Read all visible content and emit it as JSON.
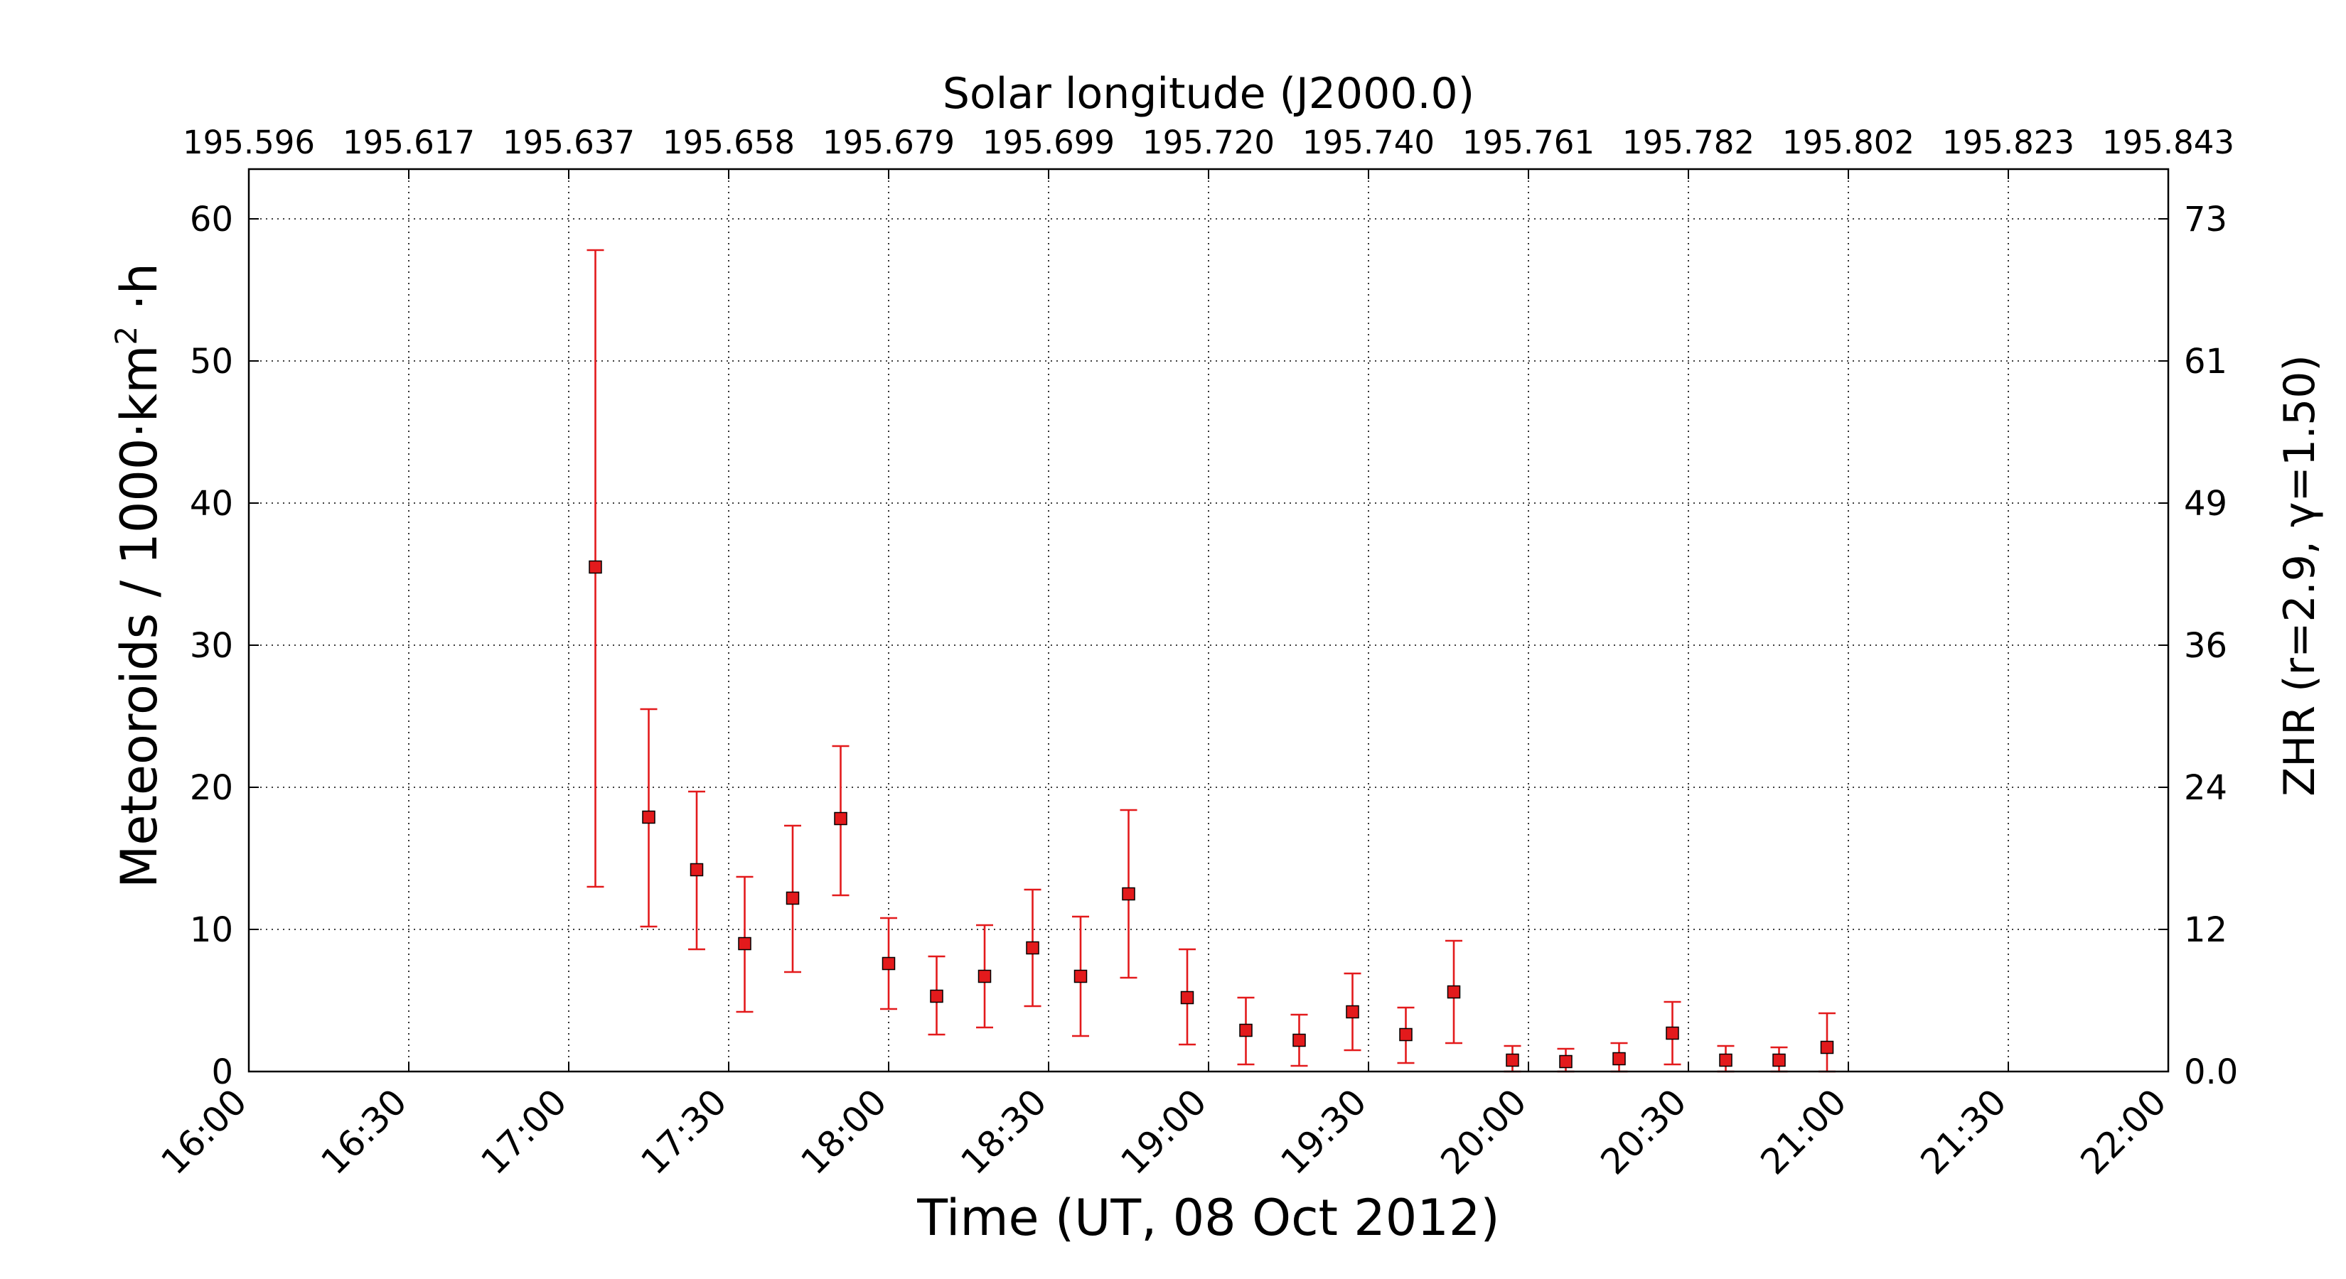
{
  "chart_data": {
    "type": "scatter",
    "title": "Solar longitude (J2000.0)",
    "xlabel": "Time (UT, 08 Oct 2012)",
    "ylabel_left": "Meteoroids / 1000·km",
    "ylabel_left_superscript": "2",
    "ylabel_left_suffix": " ·h",
    "ylabel_right": "ZHR (r=2.9, γ=1.50)",
    "xlim": [
      "16:00",
      "22:00"
    ],
    "ylim": [
      0,
      63.5
    ],
    "grid": true,
    "x_tick_labels": [
      "16:00",
      "16:30",
      "17:00",
      "17:30",
      "18:00",
      "18:30",
      "19:00",
      "19:30",
      "20:00",
      "20:30",
      "21:00",
      "21:30",
      "22:00"
    ],
    "y_tick_values": [
      0,
      10,
      20,
      30,
      40,
      50,
      60
    ],
    "y_right_tick_labels": [
      "0.0",
      "12",
      "24",
      "36",
      "49",
      "61",
      "73"
    ],
    "top_tick_labels": [
      "195.596",
      "195.617",
      "195.637",
      "195.658",
      "195.679",
      "195.699",
      "195.720",
      "195.740",
      "195.761",
      "195.782",
      "195.802",
      "195.823",
      "195.843"
    ],
    "series": [
      {
        "color": "#e31a1c",
        "marker": "square",
        "points": [
          {
            "t": "17:05",
            "y": 35.5,
            "lo": 13.0,
            "hi": 57.8
          },
          {
            "t": "17:15",
            "y": 17.9,
            "lo": 10.2,
            "hi": 25.5
          },
          {
            "t": "17:24",
            "y": 14.2,
            "lo": 8.6,
            "hi": 19.7
          },
          {
            "t": "17:33",
            "y": 9.0,
            "lo": 4.2,
            "hi": 13.7
          },
          {
            "t": "17:42",
            "y": 12.2,
            "lo": 7.0,
            "hi": 17.3
          },
          {
            "t": "17:51",
            "y": 17.8,
            "lo": 12.4,
            "hi": 22.9
          },
          {
            "t": "18:00",
            "y": 7.6,
            "lo": 4.4,
            "hi": 10.8
          },
          {
            "t": "18:09",
            "y": 5.3,
            "lo": 2.6,
            "hi": 8.1
          },
          {
            "t": "18:18",
            "y": 6.7,
            "lo": 3.1,
            "hi": 10.3
          },
          {
            "t": "18:27",
            "y": 8.7,
            "lo": 4.6,
            "hi": 12.8
          },
          {
            "t": "18:36",
            "y": 6.7,
            "lo": 2.5,
            "hi": 10.9
          },
          {
            "t": "18:45",
            "y": 12.5,
            "lo": 6.6,
            "hi": 18.4
          },
          {
            "t": "18:56",
            "y": 5.2,
            "lo": 1.9,
            "hi": 8.6
          },
          {
            "t": "19:07",
            "y": 2.9,
            "lo": 0.5,
            "hi": 5.2
          },
          {
            "t": "19:17",
            "y": 2.2,
            "lo": 0.4,
            "hi": 4.0
          },
          {
            "t": "19:27",
            "y": 4.2,
            "lo": 1.5,
            "hi": 6.9
          },
          {
            "t": "19:37",
            "y": 2.6,
            "lo": 0.6,
            "hi": 4.5
          },
          {
            "t": "19:46",
            "y": 5.6,
            "lo": 2.0,
            "hi": 9.2
          },
          {
            "t": "19:57",
            "y": 0.8,
            "lo": 0.0,
            "hi": 1.8
          },
          {
            "t": "20:07",
            "y": 0.7,
            "lo": 0.0,
            "hi": 1.6
          },
          {
            "t": "20:17",
            "y": 0.9,
            "lo": 0.0,
            "hi": 2.0
          },
          {
            "t": "20:27",
            "y": 2.7,
            "lo": 0.5,
            "hi": 4.9
          },
          {
            "t": "20:37",
            "y": 0.8,
            "lo": 0.0,
            "hi": 1.8
          },
          {
            "t": "20:47",
            "y": 0.8,
            "lo": 0.0,
            "hi": 1.7
          },
          {
            "t": "20:56",
            "y": 1.7,
            "lo": 0.0,
            "hi": 4.1
          }
        ]
      }
    ]
  }
}
